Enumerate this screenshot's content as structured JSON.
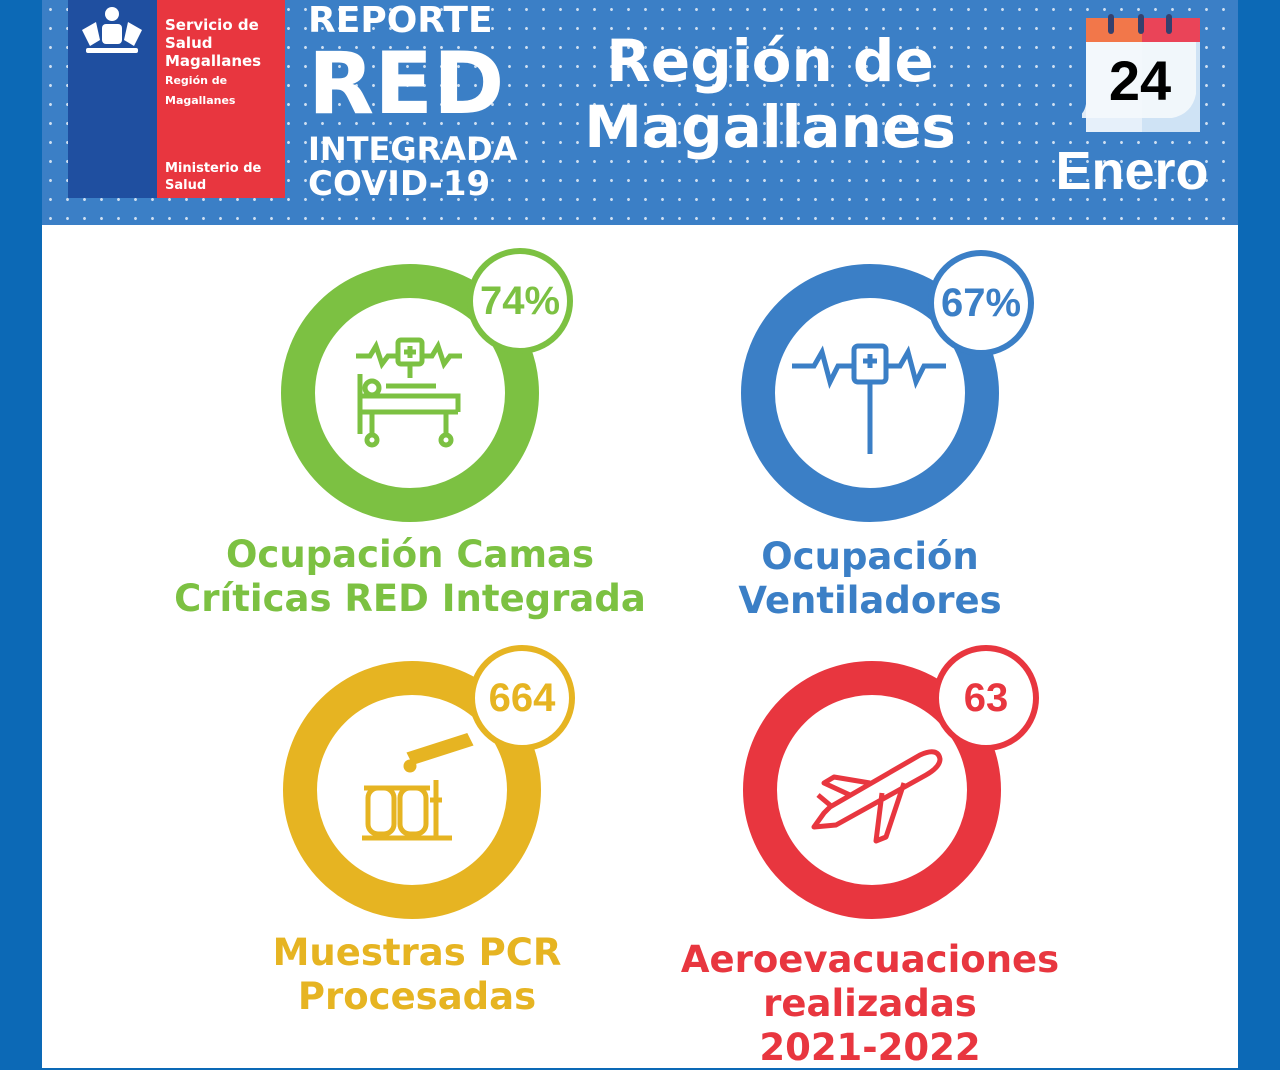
{
  "header": {
    "logo": {
      "line1": "Servicio de",
      "line2": "Salud",
      "line3": "Magallanes",
      "line4": "Región de",
      "line5": "Magallanes",
      "line6": "Ministerio de",
      "line7": "Salud"
    },
    "report": {
      "line1": "REPORTE",
      "line2": "RED",
      "line3": "INTEGRADA",
      "line4": "COVID-19"
    },
    "region": {
      "line1": "Región de",
      "line2": "Magallanes"
    },
    "date": {
      "day": "24",
      "month": "Enero"
    }
  },
  "colors": {
    "green": "#7cc142",
    "blue": "#3b7fc6",
    "yellow": "#e6b422",
    "red": "#e8363f"
  },
  "indicators": [
    {
      "value": "74%",
      "label1": "Ocupación Camas",
      "label2": "Críticas RED Integrada",
      "icon": "hospital-bed-icon"
    },
    {
      "value": "67%",
      "label1": "Ocupación",
      "label2": "Ventiladores",
      "icon": "ventilator-icon"
    },
    {
      "value": "664",
      "label1": "Muestras PCR",
      "label2": "Procesadas",
      "icon": "test-tubes-icon"
    },
    {
      "value": "63",
      "label1": "Aeroevacuaciones",
      "label2": "realizadas",
      "label3": "2021-2022",
      "icon": "airplane-icon"
    }
  ]
}
